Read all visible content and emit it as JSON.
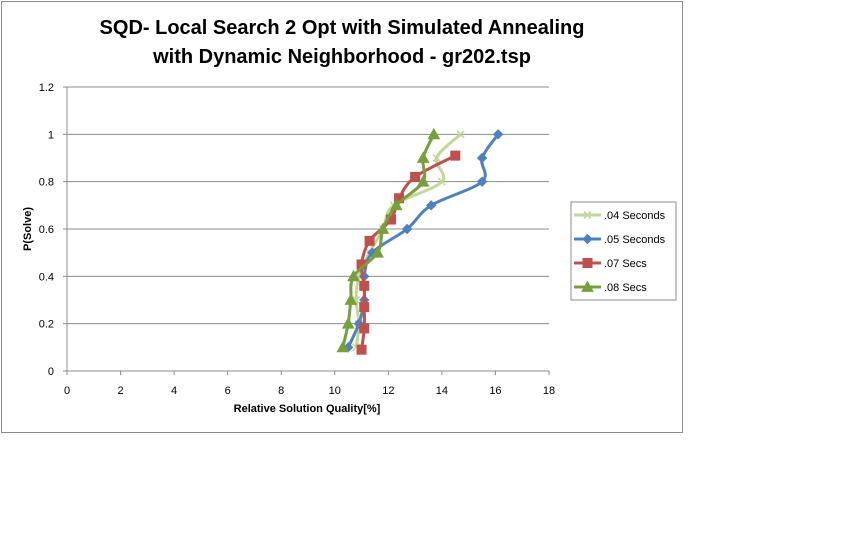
{
  "chart_data": {
    "type": "scatter",
    "title_lines": [
      "SQD- Local Search 2 Opt with Simulated Annealing",
      "with Dynamic Neighborhood - gr202.tsp"
    ],
    "xlabel": "Relative Solution Quality[%]",
    "ylabel": "P(Solve)",
    "xlim": [
      0,
      18
    ],
    "ylim": [
      0,
      1.2
    ],
    "x_ticks": [
      "0",
      "2",
      "4",
      "6",
      "8",
      "10",
      "12",
      "14",
      "16",
      "18"
    ],
    "y_ticks": [
      "0",
      "0.2",
      "0.4",
      "0.6",
      "0.8",
      "1",
      "1.2"
    ],
    "grid": "horizontal",
    "legend_position": "right",
    "series": [
      {
        "name": ".04 Seconds",
        "color": "#c3d69b",
        "marker": "x",
        "points": [
          [
            10.8,
            0.1
          ],
          [
            10.9,
            0.2
          ],
          [
            10.8,
            0.3
          ],
          [
            10.9,
            0.4
          ],
          [
            11.3,
            0.5
          ],
          [
            11.8,
            0.6
          ],
          [
            12.2,
            0.7
          ],
          [
            14,
            0.8
          ],
          [
            13.8,
            0.9
          ],
          [
            14.7,
            1.0
          ]
        ]
      },
      {
        "name": ".05 Seconds",
        "color": "#4f81bd",
        "marker": "diamond",
        "points": [
          [
            10.5,
            0.1
          ],
          [
            10.9,
            0.2
          ],
          [
            11.1,
            0.3
          ],
          [
            11.1,
            0.4
          ],
          [
            11.4,
            0.5
          ],
          [
            12.7,
            0.6
          ],
          [
            13.6,
            0.7
          ],
          [
            15.5,
            0.8
          ],
          [
            15.5,
            0.9
          ],
          [
            16.1,
            1.0
          ]
        ]
      },
      {
        "name": ".07 Secs",
        "color": "#c0504d",
        "marker": "square",
        "points": [
          [
            11,
            0.09
          ],
          [
            11.1,
            0.18
          ],
          [
            11.1,
            0.27
          ],
          [
            11.1,
            0.36
          ],
          [
            11.0,
            0.45
          ],
          [
            11.3,
            0.55
          ],
          [
            12.1,
            0.64
          ],
          [
            12.4,
            0.73
          ],
          [
            13.0,
            0.82
          ],
          [
            14.5,
            0.91
          ]
        ]
      },
      {
        "name": ".08 Secs",
        "color": "#77a03a",
        "marker": "triangle",
        "points": [
          [
            10.3,
            0.1
          ],
          [
            10.5,
            0.2
          ],
          [
            10.6,
            0.3
          ],
          [
            10.7,
            0.4
          ],
          [
            11.6,
            0.5
          ],
          [
            11.8,
            0.6
          ],
          [
            12.3,
            0.7
          ],
          [
            13.3,
            0.8
          ],
          [
            13.3,
            0.9
          ],
          [
            13.7,
            1.0
          ]
        ]
      }
    ]
  }
}
